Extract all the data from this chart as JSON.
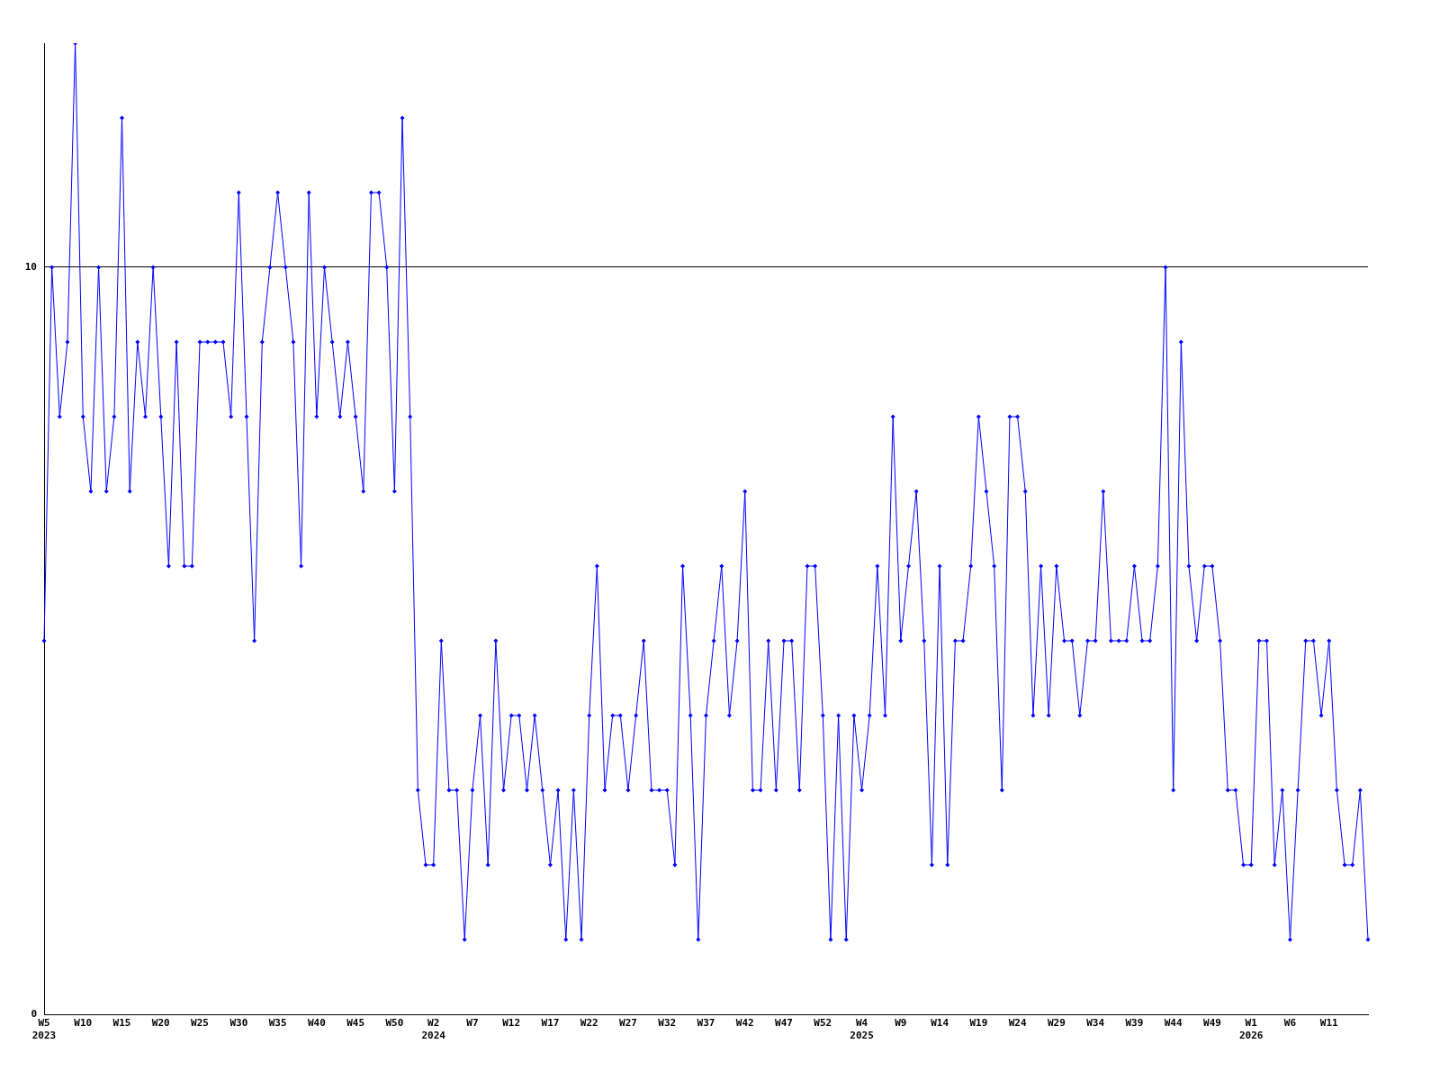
{
  "chart_data": {
    "type": "line",
    "categories": [
      "W5\n2023",
      null,
      null,
      null,
      null,
      "W10",
      null,
      null,
      null,
      null,
      "W15",
      null,
      null,
      null,
      null,
      "W20",
      null,
      null,
      null,
      null,
      "W25",
      null,
      null,
      null,
      null,
      "W30",
      null,
      null,
      null,
      null,
      "W35",
      null,
      null,
      null,
      null,
      "W40",
      null,
      null,
      null,
      null,
      "W45",
      null,
      null,
      null,
      null,
      "W50",
      null,
      null,
      null,
      null,
      "W2\n2024",
      null,
      null,
      null,
      null,
      "W7",
      null,
      null,
      null,
      null,
      "W12",
      null,
      null,
      null,
      null,
      "W17",
      null,
      null,
      null,
      null,
      "W22",
      null,
      null,
      null,
      null,
      "W27",
      null,
      null,
      null,
      null,
      "W32",
      null,
      null,
      null,
      null,
      "W37",
      null,
      null,
      null,
      null,
      "W42",
      null,
      null,
      null,
      null,
      "W47",
      null,
      null,
      null,
      null,
      "W52",
      null,
      null,
      null,
      null,
      "W4\n2025",
      null,
      null,
      null,
      null,
      "W9",
      null,
      null,
      null,
      null,
      "W14",
      null,
      null,
      null,
      null,
      "W19",
      null,
      null,
      null,
      null,
      "W24",
      null,
      null,
      null,
      null,
      "W29",
      null,
      null,
      null,
      null,
      "W34",
      null,
      null,
      null,
      null,
      "W39",
      null,
      null,
      null,
      null,
      "W44",
      null,
      null,
      null,
      null,
      "W49",
      null,
      null,
      null,
      null,
      "W1\n2026",
      null,
      null,
      null,
      null,
      "W6",
      null,
      null,
      null,
      null,
      "W11",
      null,
      null,
      null,
      null,
      null
    ],
    "series": [
      {
        "color": "#0000ff",
        "values": [
          5,
          10,
          8,
          9,
          13,
          8,
          7,
          10,
          7,
          8,
          12,
          7,
          9,
          8,
          10,
          8,
          6,
          9,
          6,
          6,
          9,
          9,
          9,
          9,
          8,
          11,
          8,
          5,
          9,
          10,
          11,
          10,
          9,
          6,
          11,
          8,
          10,
          9,
          8,
          9,
          8,
          7,
          11,
          11,
          10,
          7,
          12,
          8,
          3,
          2,
          2,
          5,
          3,
          3,
          1,
          3,
          4,
          2,
          5,
          3,
          4,
          4,
          3,
          4,
          3,
          2,
          3,
          1,
          3,
          1,
          4,
          6,
          3,
          4,
          4,
          3,
          4,
          5,
          3,
          3,
          3,
          2,
          6,
          4,
          1,
          4,
          5,
          6,
          4,
          5,
          7,
          3,
          3,
          5,
          3,
          5,
          5,
          3,
          6,
          6,
          4,
          1,
          4,
          1,
          4,
          3,
          4,
          6,
          4,
          8,
          5,
          6,
          7,
          5,
          2,
          6,
          2,
          5,
          5,
          6,
          8,
          7,
          6,
          3,
          8,
          8,
          7,
          4,
          6,
          4,
          6,
          5,
          5,
          4,
          5,
          5,
          7,
          5,
          5,
          5,
          6,
          5,
          5,
          6,
          10,
          3,
          9,
          6,
          5,
          6,
          6,
          5,
          3,
          3,
          2,
          2,
          5,
          5,
          2,
          3,
          1,
          3,
          5,
          5,
          4,
          5,
          3,
          2,
          2,
          3,
          1
        ]
      }
    ],
    "ylim": [
      0,
      13
    ],
    "yticks": [
      0,
      10
    ],
    "grid": "y",
    "legend": false,
    "marker": "diamond",
    "line_style": "solid"
  }
}
